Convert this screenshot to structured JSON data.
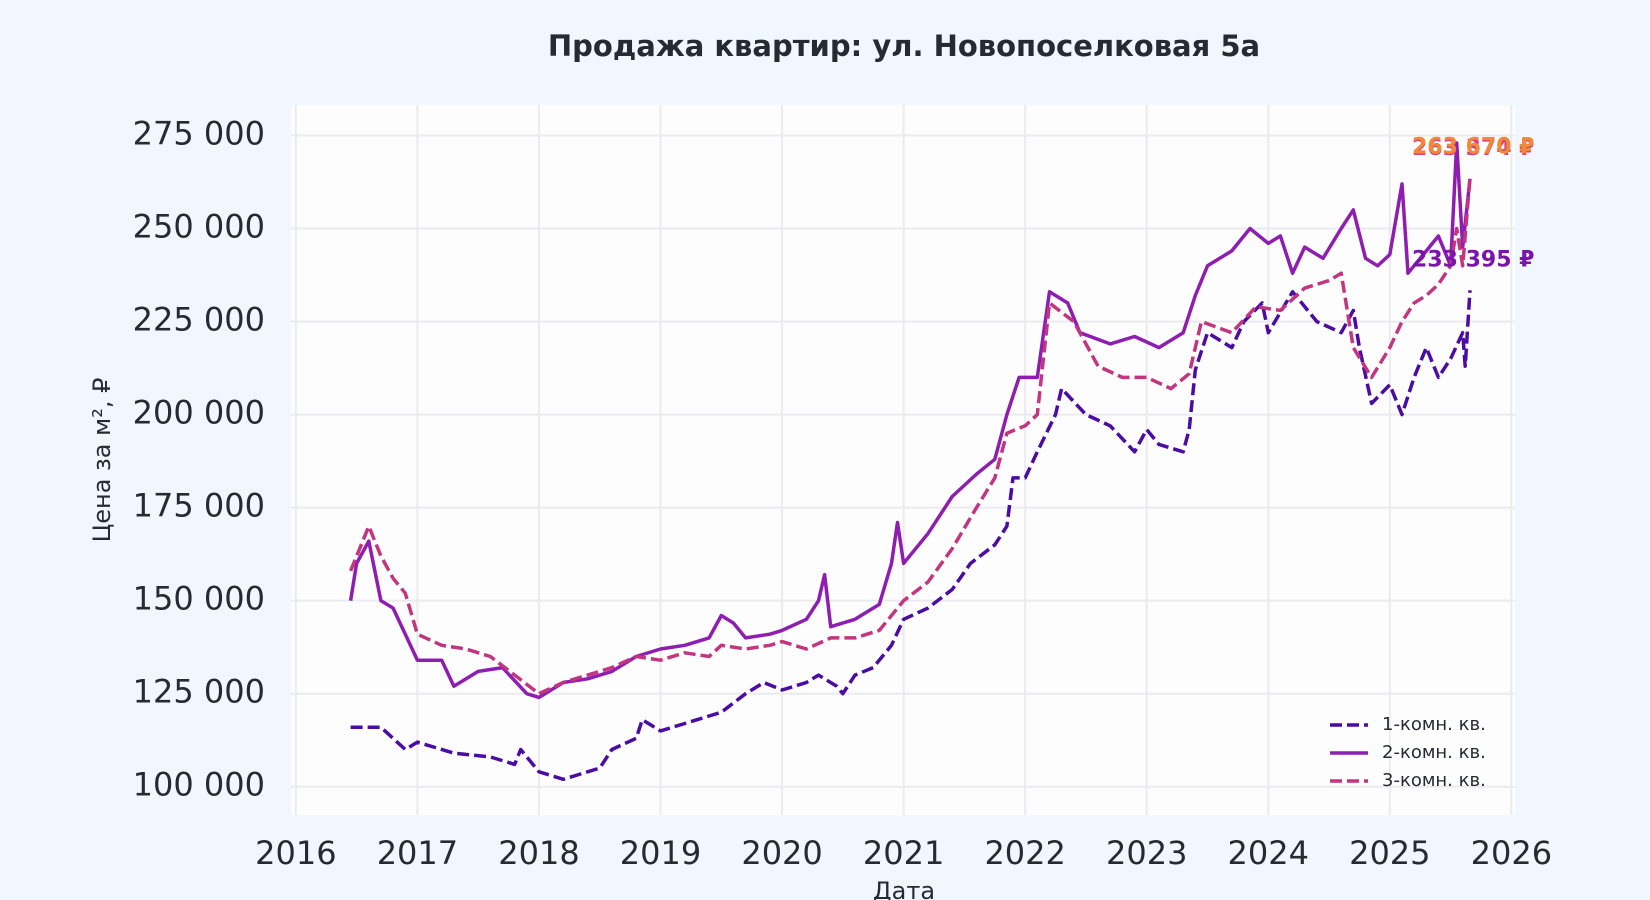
{
  "chart_data": {
    "type": "line",
    "title": "Продажа квартир: ул. Новопоселковая 5а",
    "xlabel": "Дата",
    "ylabel": "Цена за м², ₽",
    "xlim": [
      2015.96,
      2026.03
    ],
    "xticks": [
      2016,
      2017,
      2018,
      2019,
      2020,
      2021,
      2022,
      2023,
      2024,
      2025,
      2026
    ],
    "ylim": [
      92400,
      283200
    ],
    "yticks": [
      {
        "value": 100000,
        "label": "100 000"
      },
      {
        "value": 125000,
        "label": "125 000"
      },
      {
        "value": 150000,
        "label": "150 000"
      },
      {
        "value": 175000,
        "label": "175 000"
      },
      {
        "value": 200000,
        "label": "200 000"
      },
      {
        "value": 225000,
        "label": "225 000"
      },
      {
        "value": 250000,
        "label": "250 000"
      },
      {
        "value": 275000,
        "label": "275 000"
      }
    ],
    "grid": true,
    "legend": "lower right",
    "series": [
      {
        "name": "1-комн. кв.",
        "color": "#4a0ca3",
        "dash": "dashed",
        "end_label": "233 395 ₽",
        "label_color": "#7b14a8",
        "x": [
          2016.45,
          2016.7,
          2016.9,
          2017.0,
          2017.3,
          2017.6,
          2017.8,
          2017.85,
          2018.0,
          2018.2,
          2018.4,
          2018.5,
          2018.6,
          2018.8,
          2018.85,
          2019.0,
          2019.2,
          2019.4,
          2019.5,
          2019.7,
          2019.85,
          2020.0,
          2020.2,
          2020.3,
          2020.45,
          2020.5,
          2020.6,
          2020.75,
          2020.9,
          2021.0,
          2021.2,
          2021.4,
          2021.55,
          2021.75,
          2021.85,
          2021.9,
          2022.0,
          2022.1,
          2022.25,
          2022.3,
          2022.5,
          2022.7,
          2022.9,
          2023.0,
          2023.1,
          2023.3,
          2023.35,
          2023.4,
          2023.5,
          2023.7,
          2023.8,
          2023.95,
          2024.0,
          2024.2,
          2024.4,
          2024.6,
          2024.7,
          2024.75,
          2024.85,
          2025.0,
          2025.1,
          2025.2,
          2025.3,
          2025.4,
          2025.5,
          2025.6,
          2025.62,
          2025.66
        ],
        "values": [
          116000,
          116000,
          110000,
          112000,
          109000,
          108000,
          106000,
          110000,
          104000,
          102000,
          104000,
          105000,
          110000,
          113000,
          118000,
          115000,
          117000,
          119000,
          120000,
          125000,
          128000,
          126000,
          128000,
          130000,
          127000,
          125000,
          130000,
          132000,
          138000,
          145000,
          148000,
          153000,
          160000,
          165000,
          170000,
          183000,
          183000,
          190000,
          200000,
          207000,
          200000,
          197000,
          190000,
          196000,
          192000,
          190000,
          196000,
          212000,
          222000,
          218000,
          225000,
          230000,
          222000,
          233000,
          225000,
          222000,
          228000,
          218000,
          203000,
          208000,
          200000,
          210000,
          218000,
          210000,
          215000,
          222000,
          213000,
          233395
        ]
      },
      {
        "name": "2-комн. кв.",
        "color": "#8e1eb0",
        "dash": "solid",
        "end_label": "263 374 ₽",
        "label_color": "#d9437a",
        "x": [
          2016.45,
          2016.5,
          2016.6,
          2016.7,
          2016.8,
          2016.9,
          2017.0,
          2017.2,
          2017.3,
          2017.5,
          2017.7,
          2017.9,
          2018.0,
          2018.2,
          2018.4,
          2018.6,
          2018.8,
          2019.0,
          2019.2,
          2019.4,
          2019.5,
          2019.6,
          2019.7,
          2019.9,
          2020.0,
          2020.2,
          2020.3,
          2020.35,
          2020.4,
          2020.6,
          2020.8,
          2020.9,
          2020.95,
          2021.0,
          2021.2,
          2021.4,
          2021.6,
          2021.75,
          2021.85,
          2021.95,
          2022.1,
          2022.2,
          2022.35,
          2022.45,
          2022.7,
          2022.9,
          2023.1,
          2023.3,
          2023.4,
          2023.5,
          2023.7,
          2023.85,
          2024.0,
          2024.1,
          2024.2,
          2024.3,
          2024.45,
          2024.6,
          2024.7,
          2024.8,
          2024.9,
          2025.0,
          2025.1,
          2025.15,
          2025.3,
          2025.4,
          2025.5,
          2025.55,
          2025.6,
          2025.66
        ],
        "values": [
          150000,
          160000,
          166000,
          150000,
          148000,
          141000,
          134000,
          134000,
          127000,
          131000,
          132000,
          125000,
          124000,
          128000,
          129000,
          131000,
          135000,
          137000,
          138000,
          140000,
          146000,
          144000,
          140000,
          141000,
          142000,
          145000,
          150000,
          157000,
          143000,
          145000,
          149000,
          160000,
          171000,
          160000,
          168000,
          178000,
          184000,
          188000,
          200000,
          210000,
          210000,
          233000,
          230000,
          222000,
          219000,
          221000,
          218000,
          222000,
          232000,
          240000,
          244000,
          250000,
          246000,
          248000,
          238000,
          245000,
          242000,
          250000,
          255000,
          242000,
          240000,
          243000,
          262000,
          238000,
          244000,
          248000,
          240000,
          273000,
          245000,
          263374
        ]
      },
      {
        "name": "3-комн. кв.",
        "color": "#c2357f",
        "dash": "dashed",
        "end_label": "263 670 ₽",
        "label_color": "#f08a3a",
        "x": [
          2016.45,
          2016.6,
          2016.7,
          2016.8,
          2016.9,
          2017.0,
          2017.2,
          2017.4,
          2017.6,
          2017.8,
          2018.0,
          2018.2,
          2018.4,
          2018.6,
          2018.8,
          2019.0,
          2019.2,
          2019.4,
          2019.5,
          2019.7,
          2019.9,
          2020.0,
          2020.2,
          2020.4,
          2020.6,
          2020.8,
          2021.0,
          2021.2,
          2021.4,
          2021.6,
          2021.75,
          2021.85,
          2022.0,
          2022.1,
          2022.2,
          2022.4,
          2022.6,
          2022.8,
          2023.0,
          2023.2,
          2023.35,
          2023.45,
          2023.7,
          2023.9,
          2024.1,
          2024.3,
          2024.5,
          2024.6,
          2024.7,
          2024.85,
          2025.0,
          2025.1,
          2025.2,
          2025.3,
          2025.4,
          2025.5,
          2025.55,
          2025.6,
          2025.66
        ],
        "values": [
          158000,
          170000,
          162000,
          156000,
          152000,
          141000,
          138000,
          137000,
          135000,
          130000,
          125000,
          128000,
          130000,
          132000,
          135000,
          134000,
          136000,
          135000,
          138000,
          137000,
          138000,
          139000,
          137000,
          140000,
          140000,
          142000,
          150000,
          155000,
          164000,
          175000,
          183000,
          195000,
          197000,
          200000,
          230000,
          225000,
          213000,
          210000,
          210000,
          207000,
          211000,
          225000,
          222000,
          229000,
          228000,
          234000,
          236000,
          238000,
          218000,
          210000,
          218000,
          225000,
          230000,
          232000,
          235000,
          240000,
          250000,
          240000,
          263670
        ]
      }
    ]
  }
}
